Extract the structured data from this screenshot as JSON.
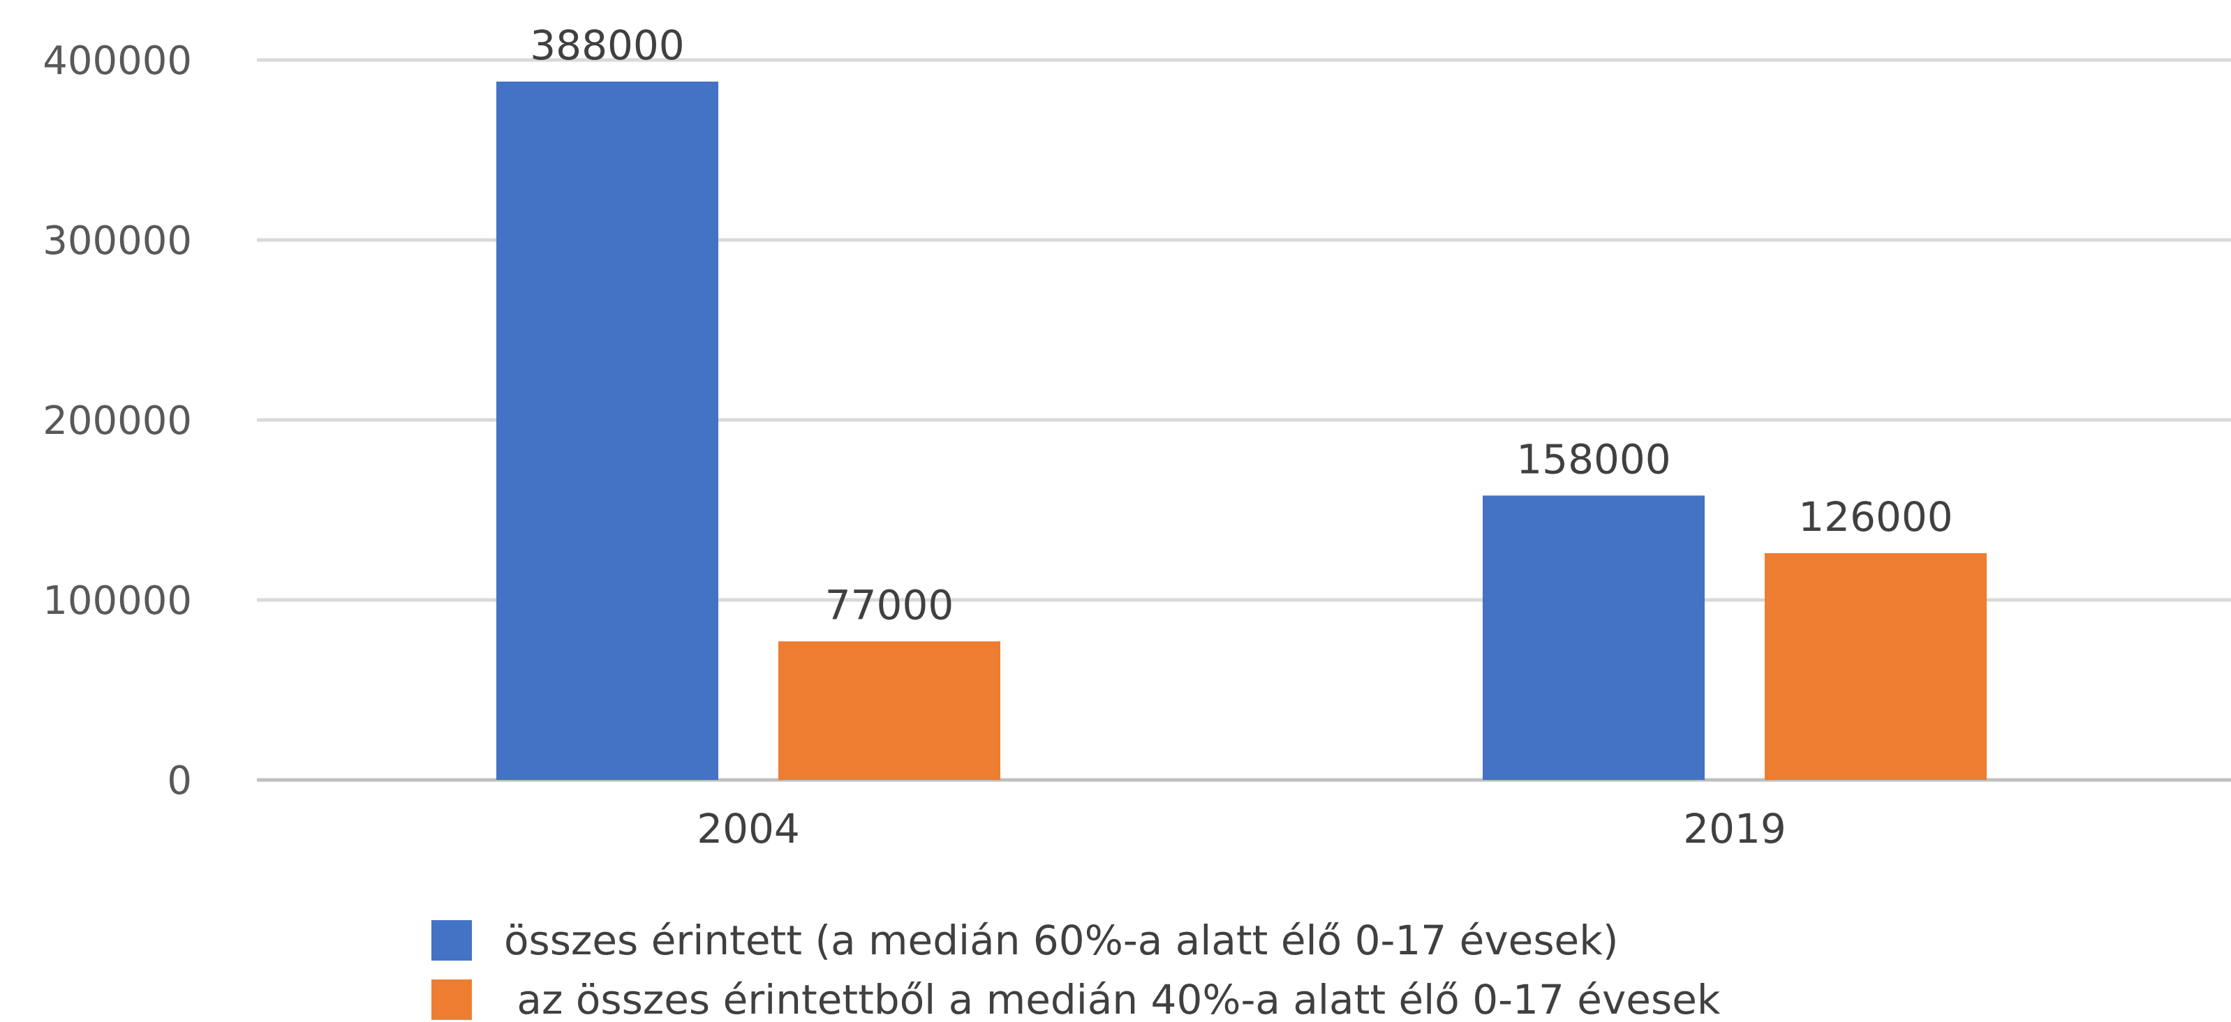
{
  "chart_data": {
    "type": "bar",
    "categories": [
      "2004",
      "2019"
    ],
    "series": [
      {
        "name": "összes érintett (a medián 60%-a alatt élő 0-17 évesek)",
        "color": "#4472C4",
        "values": [
          388000,
          158000
        ],
        "labels": [
          "388000",
          "158000"
        ]
      },
      {
        "name": " az összes érintettből a medián 40%-a alatt élő 0-17 évesek",
        "color": "#ED7D31",
        "values": [
          77000,
          126000
        ],
        "labels": [
          "77000",
          "126000"
        ]
      }
    ],
    "yticks": [
      0,
      100000,
      200000,
      300000,
      400000
    ],
    "ytick_labels": [
      "0",
      "100000",
      "200000",
      "300000",
      "400000"
    ],
    "ylim": [
      0,
      400000
    ],
    "grid": true,
    "legend": "bottom",
    "title": "",
    "xlabel": "",
    "ylabel": ""
  }
}
